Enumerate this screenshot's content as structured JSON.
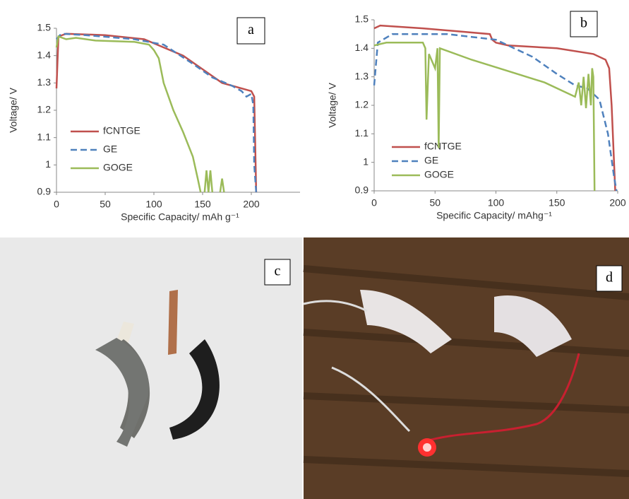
{
  "chart_data": [
    {
      "type": "line",
      "label": "a",
      "x_label": "Specific Capacity/ mAh g⁻¹",
      "y_label": "Voltage/ V",
      "xlim": [
        0,
        250
      ],
      "xticks": [
        0,
        50,
        100,
        150,
        200
      ],
      "ylim": [
        0.9,
        1.5
      ],
      "yticks": [
        0.9,
        1,
        1.1,
        1.2,
        1.3,
        1.4,
        1.5
      ],
      "series": [
        {
          "name": "fCNTGE",
          "color": "#c0504d",
          "dash": false,
          "x": [
            0,
            2,
            10,
            50,
            90,
            110,
            130,
            150,
            170,
            200,
            203,
            205
          ],
          "values": [
            1.28,
            1.47,
            1.48,
            1.475,
            1.46,
            1.43,
            1.4,
            1.35,
            1.3,
            1.27,
            1.25,
            0.9
          ]
        },
        {
          "name": "GE",
          "color": "#4f81bd",
          "dash": true,
          "x": [
            0,
            5,
            30,
            80,
            110,
            140,
            160,
            180,
            190,
            195,
            200,
            202,
            203,
            205
          ],
          "values": [
            1.46,
            1.48,
            1.475,
            1.46,
            1.44,
            1.37,
            1.32,
            1.29,
            1.27,
            1.25,
            1.26,
            1.22,
            1.0,
            0.9
          ]
        },
        {
          "name": "GOGE",
          "color": "#9bbb59",
          "dash": false,
          "x": [
            0,
            2,
            10,
            20,
            40,
            80,
            95,
            100,
            105,
            110,
            120,
            130,
            140,
            145,
            148,
            150,
            152,
            154,
            156,
            158,
            160,
            165,
            168,
            170,
            172
          ],
          "values": [
            1.43,
            1.47,
            1.46,
            1.465,
            1.455,
            1.45,
            1.44,
            1.42,
            1.39,
            1.3,
            1.2,
            1.12,
            1.03,
            0.95,
            0.9,
            null,
            0.9,
            0.98,
            0.9,
            0.98,
            0.9,
            null,
            0.9,
            0.95,
            0.9
          ]
        }
      ]
    },
    {
      "type": "line",
      "label": "b",
      "x_label": "Specific Capacity/ mAhg⁻¹",
      "y_label": "Voltage/ V",
      "xlim": [
        0,
        200
      ],
      "xticks": [
        0,
        50,
        100,
        150,
        200
      ],
      "ylim": [
        0.9,
        1.5
      ],
      "yticks": [
        0.9,
        1,
        1.1,
        1.2,
        1.3,
        1.4,
        1.5
      ],
      "series": [
        {
          "name": "fCNTGE",
          "color": "#c0504d",
          "dash": false,
          "x": [
            0,
            5,
            40,
            95,
            97,
            100,
            110,
            150,
            180,
            190,
            193,
            195,
            197,
            198
          ],
          "values": [
            1.47,
            1.48,
            1.47,
            1.45,
            1.43,
            1.42,
            1.41,
            1.4,
            1.38,
            1.36,
            1.33,
            1.2,
            1.0,
            0.9
          ]
        },
        {
          "name": "GE",
          "color": "#4f81bd",
          "dash": true,
          "x": [
            0,
            3,
            15,
            60,
            100,
            130,
            150,
            165,
            175,
            185,
            192,
            197,
            199
          ],
          "values": [
            1.27,
            1.42,
            1.45,
            1.45,
            1.43,
            1.37,
            1.31,
            1.27,
            1.26,
            1.22,
            1.1,
            0.95,
            0.9
          ]
        },
        {
          "name": "GOGE",
          "color": "#9bbb59",
          "dash": false,
          "x": [
            0,
            10,
            40,
            42,
            43,
            45,
            50,
            52,
            53,
            54,
            80,
            110,
            140,
            165,
            168,
            170,
            172,
            174,
            176,
            178,
            179,
            180,
            181
          ],
          "values": [
            1.41,
            1.42,
            1.42,
            1.4,
            1.15,
            1.38,
            1.33,
            1.4,
            1.05,
            1.4,
            1.36,
            1.32,
            1.28,
            1.23,
            1.28,
            1.2,
            1.3,
            1.19,
            1.31,
            1.2,
            1.33,
            1.3,
            0.9
          ]
        }
      ]
    }
  ],
  "photos": [
    {
      "label": "c"
    },
    {
      "label": "d"
    }
  ]
}
